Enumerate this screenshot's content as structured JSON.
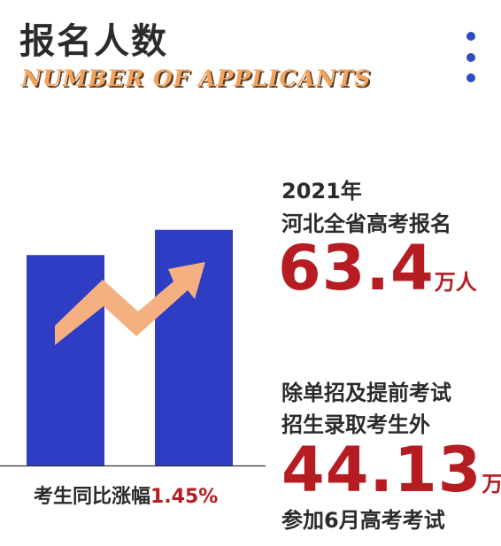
{
  "header": {
    "title": "报名人数",
    "subtitle": "NUMBER OF APPLICANTS"
  },
  "menu": {
    "icon": "more-vertical-icon"
  },
  "colors": {
    "bar": "#2e3dc4",
    "arrow": "#f4b080",
    "accent": "#b61d22"
  },
  "chart_data": {
    "type": "bar",
    "categories": [
      "",
      ""
    ],
    "values": [
      63.4,
      71
    ],
    "ylim": [
      0,
      80
    ],
    "grid": false,
    "trend_arrow": "up"
  },
  "caption": {
    "label": "考生同比涨幅",
    "value": "1.45%"
  },
  "stat1": {
    "year": "2021年",
    "label": "河北全省高考报名",
    "number": "63.4",
    "unit": "万人"
  },
  "stat2": {
    "line1": "除单招及提前考试",
    "line2": "招生录取考生外",
    "number": "44.13",
    "unit": "万",
    "line3": "参加6月高考考试"
  }
}
